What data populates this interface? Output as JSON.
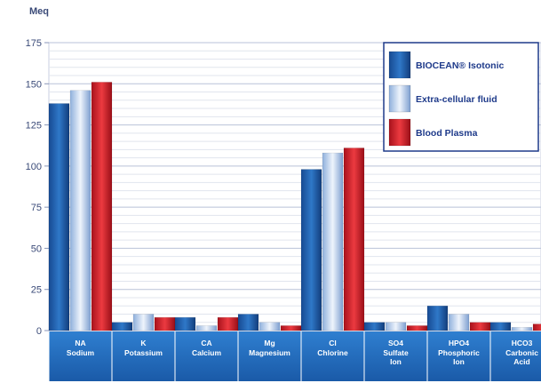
{
  "chart_data": {
    "type": "bar",
    "unit_label": "Meq",
    "ylim": [
      0,
      175
    ],
    "yticks": [
      0,
      25,
      50,
      75,
      100,
      125,
      150,
      175
    ],
    "grid": true,
    "legend_position": "top-right",
    "categories": [
      {
        "symbol": "NA",
        "name": "Sodium"
      },
      {
        "symbol": "K",
        "name": "Potassium"
      },
      {
        "symbol": "CA",
        "name": "Calcium"
      },
      {
        "symbol": "Mg",
        "name": "Magnesium"
      },
      {
        "symbol": "Cl",
        "name": "Chlorine"
      },
      {
        "symbol": "SO4",
        "name": "Sulfate Ion"
      },
      {
        "symbol": "HPO4",
        "name": "Phosphoric Ion"
      },
      {
        "symbol": "HCO3",
        "name": "Carbonic Acid"
      }
    ],
    "series": [
      {
        "name": "BIOCEAN® Isotonic",
        "color": "#1f5fb0",
        "values": [
          138,
          5,
          8,
          10,
          98,
          5,
          15,
          5
        ]
      },
      {
        "name": "Extra-cellular fluid",
        "color": "#b9cfea",
        "values": [
          146,
          10,
          3,
          5,
          108,
          5,
          10,
          2
        ]
      },
      {
        "name": "Blood Plasma",
        "color": "#d0202a",
        "values": [
          151,
          8,
          8,
          3,
          111,
          3,
          5,
          4
        ]
      }
    ]
  }
}
